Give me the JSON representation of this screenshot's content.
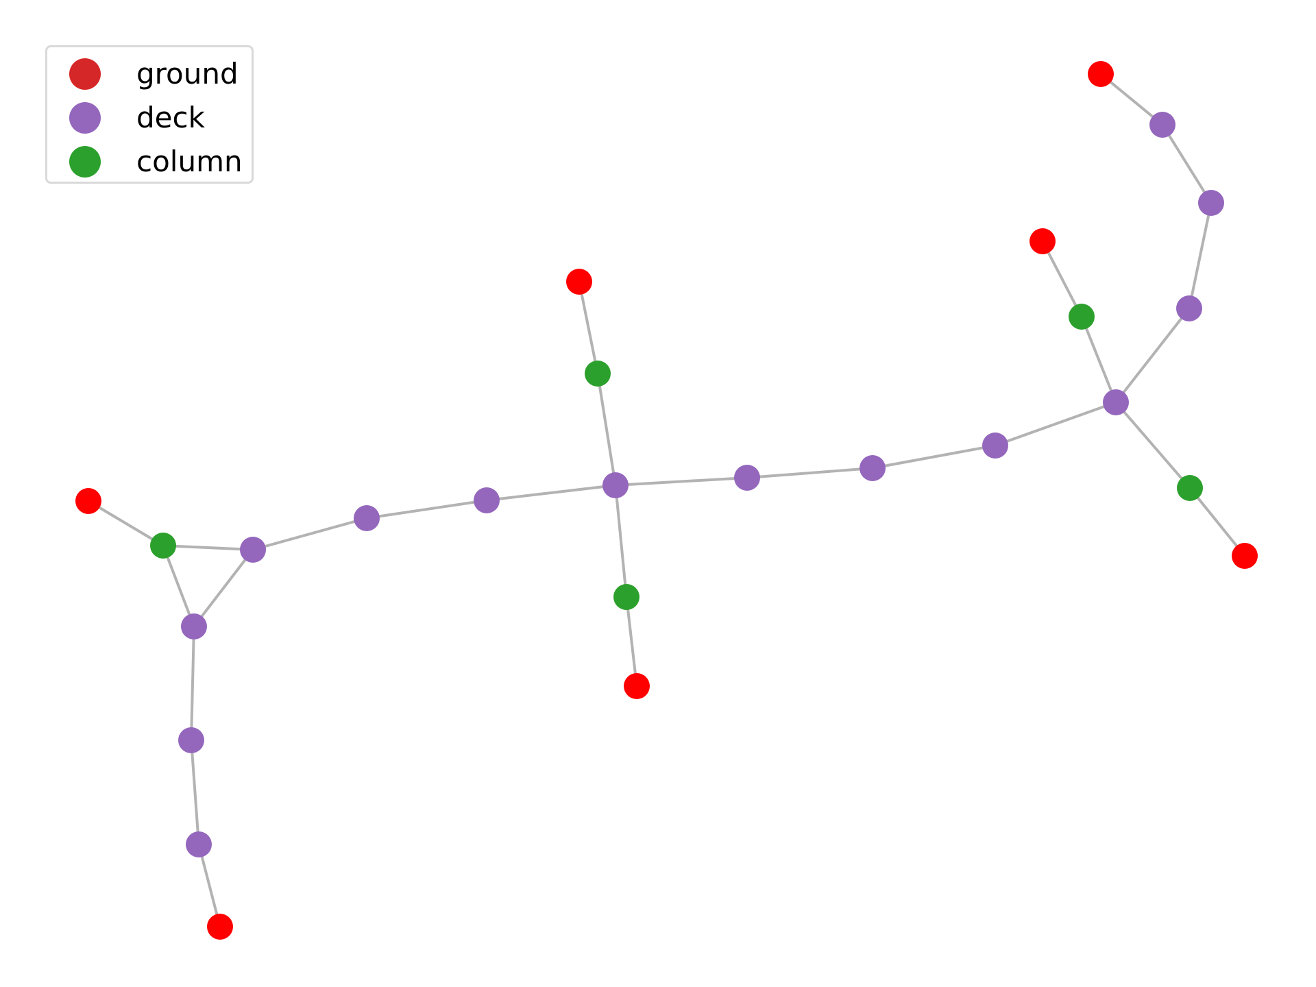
{
  "legend": {
    "items": [
      {
        "label": "ground",
        "color": "#d62728"
      },
      {
        "label": "deck",
        "color": "#9467bd"
      },
      {
        "label": "column",
        "color": "#2ca02c"
      }
    ]
  },
  "style": {
    "edge_color": "#b3b3b3",
    "node_colors": {
      "ground": "#ff0000",
      "deck": "#9467bd",
      "column": "#2ca02c"
    }
  },
  "graph": {
    "nodes": [
      {
        "id": "n1",
        "type": "ground"
      },
      {
        "id": "n2",
        "type": "column"
      },
      {
        "id": "n3",
        "type": "deck"
      },
      {
        "id": "n4",
        "type": "deck"
      },
      {
        "id": "n5",
        "type": "deck"
      },
      {
        "id": "n6",
        "type": "deck"
      },
      {
        "id": "n7",
        "type": "ground"
      },
      {
        "id": "n8",
        "type": "deck"
      },
      {
        "id": "n9",
        "type": "deck"
      },
      {
        "id": "n10",
        "type": "deck"
      },
      {
        "id": "n11",
        "type": "ground"
      },
      {
        "id": "n12",
        "type": "column"
      },
      {
        "id": "n13",
        "type": "deck"
      },
      {
        "id": "n14",
        "type": "column"
      },
      {
        "id": "n15",
        "type": "ground"
      },
      {
        "id": "n16",
        "type": "deck"
      },
      {
        "id": "n17",
        "type": "deck"
      },
      {
        "id": "n18",
        "type": "deck"
      },
      {
        "id": "n19",
        "type": "deck"
      },
      {
        "id": "n20",
        "type": "ground"
      },
      {
        "id": "n21",
        "type": "column"
      },
      {
        "id": "n22",
        "type": "deck"
      },
      {
        "id": "n23",
        "type": "deck"
      },
      {
        "id": "n24",
        "type": "deck"
      },
      {
        "id": "n25",
        "type": "ground"
      },
      {
        "id": "n26",
        "type": "column"
      },
      {
        "id": "n27",
        "type": "ground"
      }
    ],
    "edges": [
      [
        "n1",
        "n2"
      ],
      [
        "n2",
        "n3"
      ],
      [
        "n2",
        "n4"
      ],
      [
        "n3",
        "n4"
      ],
      [
        "n3",
        "n5"
      ],
      [
        "n5",
        "n6"
      ],
      [
        "n6",
        "n7"
      ],
      [
        "n4",
        "n8"
      ],
      [
        "n8",
        "n9"
      ],
      [
        "n9",
        "n10"
      ],
      [
        "n10",
        "n12"
      ],
      [
        "n12",
        "n11"
      ],
      [
        "n10",
        "n14"
      ],
      [
        "n14",
        "n15"
      ],
      [
        "n10",
        "n16"
      ],
      [
        "n16",
        "n17"
      ],
      [
        "n17",
        "n18"
      ],
      [
        "n18",
        "n19"
      ],
      [
        "n19",
        "n21"
      ],
      [
        "n21",
        "n20"
      ],
      [
        "n19",
        "n22"
      ],
      [
        "n22",
        "n23"
      ],
      [
        "n23",
        "n24"
      ],
      [
        "n24",
        "n25"
      ],
      [
        "n19",
        "n26"
      ],
      [
        "n26",
        "n27"
      ]
    ]
  }
}
